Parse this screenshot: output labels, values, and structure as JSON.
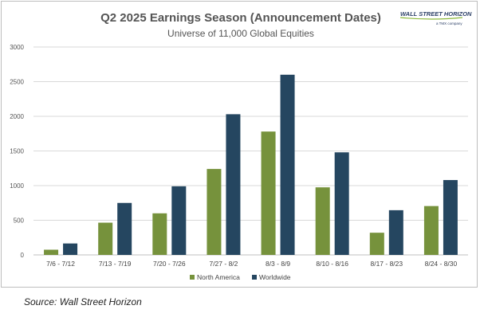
{
  "source": "Source: Wall Street Horizon",
  "logo": {
    "name": "WALL STREET HORIZON",
    "tagline": "a TMX company"
  },
  "colors": {
    "north_america": "#76923c",
    "worldwide": "#254660",
    "grid": "#d9d9d9",
    "axis": "#bfbfbf"
  },
  "chart_data": {
    "type": "bar",
    "title": "Q2 2025 Earnings Season (Announcement Dates)",
    "subtitle": "Universe of 11,000 Global Equities",
    "categories": [
      "7/6 - 7/12",
      "7/13 - 7/19",
      "7/20 - 7/26",
      "7/27 - 8/2",
      "8/3 - 8/9",
      "8/10 - 8/16",
      "8/17 - 8/23",
      "8/24 - 8/30"
    ],
    "series": [
      {
        "name": "North America",
        "values": [
          75,
          465,
          600,
          1240,
          1780,
          975,
          320,
          705
        ]
      },
      {
        "name": "Worldwide",
        "values": [
          165,
          750,
          990,
          2030,
          2600,
          1480,
          645,
          1080
        ]
      }
    ],
    "ylim": [
      0,
      3000
    ],
    "yticks": [
      0,
      500,
      1000,
      1500,
      2000,
      2500,
      3000
    ],
    "grid": true,
    "legend": "bottom"
  }
}
